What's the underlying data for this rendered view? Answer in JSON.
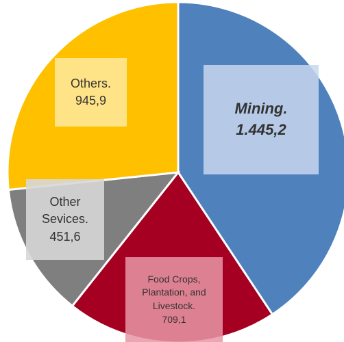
{
  "chart_data": {
    "type": "pie",
    "categories": [
      "Mining.",
      "Food Crops, Plantation, and Livestock.",
      "Other Sevices.",
      "Others."
    ],
    "values": [
      1445.2,
      709.1,
      451.6,
      945.9
    ],
    "value_labels": [
      "1.445,2",
      "709,1",
      "451,6",
      "945,9"
    ],
    "colors": [
      "#4f81bd",
      "#a50021",
      "#7f7f7f",
      "#ffc000"
    ]
  }
}
